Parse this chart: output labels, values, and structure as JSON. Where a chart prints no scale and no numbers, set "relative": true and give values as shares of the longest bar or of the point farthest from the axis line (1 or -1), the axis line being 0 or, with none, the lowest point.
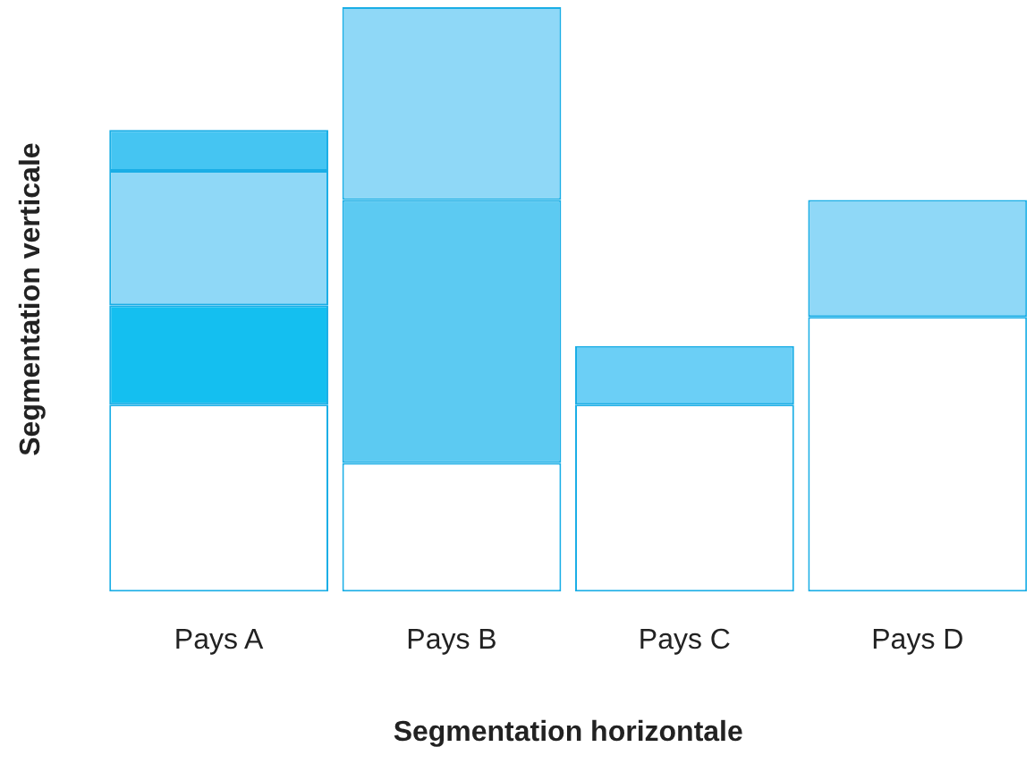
{
  "chart_data": {
    "type": "bar",
    "xlabel": "Segmentation horizontale",
    "ylabel": "Segmentation verticale",
    "categories": [
      "Pays A",
      "Pays B",
      "Pays C",
      "Pays D"
    ],
    "stacked": true,
    "relative": true,
    "series": [
      {
        "colors": [
          "#ffffff",
          "#ffffff",
          "#ffffff",
          "#ffffff"
        ],
        "values": [
          0.32,
          0.22,
          0.32,
          0.47
        ]
      },
      {
        "colors": [
          "#14bff0",
          "#5ccaf2",
          "#6bcff6",
          "#8fd8f7"
        ],
        "values": [
          0.17,
          0.45,
          0.1,
          0.2
        ]
      },
      {
        "colors": [
          "#8fd8f7",
          "#8fd8f7",
          null,
          null
        ],
        "values": [
          0.23,
          0.33,
          null,
          null
        ]
      },
      {
        "colors": [
          "#45c5f2",
          null,
          null,
          null
        ],
        "values": [
          0.07,
          null,
          null,
          null
        ]
      }
    ]
  }
}
